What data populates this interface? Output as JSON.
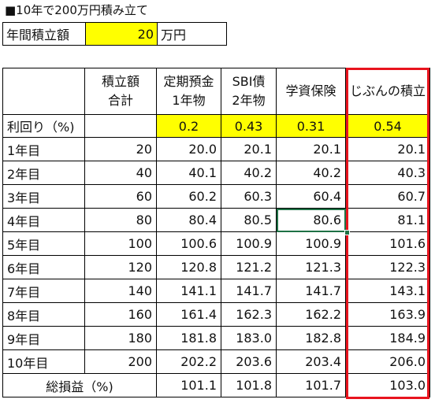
{
  "title": "■10年で200万円積み立て",
  "input": {
    "label": "年間積立額",
    "value": "20",
    "unit": "万円"
  },
  "table": {
    "headers": {
      "total": [
        "積立額",
        "合計"
      ],
      "teiki": [
        "定期預金",
        "1年物"
      ],
      "sbi": [
        "SBI債",
        "2年物"
      ],
      "gakushi": [
        "学資保険",
        ""
      ],
      "jibun": [
        "じぶんの積立",
        ""
      ]
    },
    "rate": {
      "label": "利回り（%)",
      "total": "",
      "teiki": "0.2",
      "sbi": "0.43",
      "gakushi": "0.31",
      "jibun": "0.54"
    },
    "rows": [
      {
        "label": "1年目",
        "total": "20",
        "teiki": "20.0",
        "sbi": "20.1",
        "gakushi": "20.1",
        "jibun": "20.1"
      },
      {
        "label": "2年目",
        "total": "40",
        "teiki": "40.1",
        "sbi": "40.2",
        "gakushi": "40.2",
        "jibun": "40.3"
      },
      {
        "label": "3年目",
        "total": "60",
        "teiki": "60.2",
        "sbi": "60.3",
        "gakushi": "60.4",
        "jibun": "60.7"
      },
      {
        "label": "4年目",
        "total": "80",
        "teiki": "80.4",
        "sbi": "80.5",
        "gakushi": "80.6",
        "jibun": "81.1"
      },
      {
        "label": "5年目",
        "total": "100",
        "teiki": "100.6",
        "sbi": "100.9",
        "gakushi": "100.9",
        "jibun": "101.6"
      },
      {
        "label": "6年目",
        "total": "120",
        "teiki": "120.8",
        "sbi": "121.2",
        "gakushi": "121.3",
        "jibun": "122.3"
      },
      {
        "label": "7年目",
        "total": "140",
        "teiki": "141.1",
        "sbi": "141.7",
        "gakushi": "141.7",
        "jibun": "143.1"
      },
      {
        "label": "8年目",
        "total": "160",
        "teiki": "161.4",
        "sbi": "162.3",
        "gakushi": "162.2",
        "jibun": "163.9"
      },
      {
        "label": "9年目",
        "total": "180",
        "teiki": "181.8",
        "sbi": "183.0",
        "gakushi": "182.8",
        "jibun": "184.9"
      },
      {
        "label": "10年目",
        "total": "200",
        "teiki": "202.2",
        "sbi": "203.6",
        "gakushi": "203.4",
        "jibun": "206.0"
      }
    ],
    "summary": {
      "label": "総損益（%)",
      "teiki": "101.1",
      "sbi": "101.8",
      "gakushi": "101.7",
      "jibun": "103.0"
    }
  },
  "colors": {
    "highlight": "#ffff00",
    "frame": "#e8141e",
    "selection": "#1e7145"
  }
}
